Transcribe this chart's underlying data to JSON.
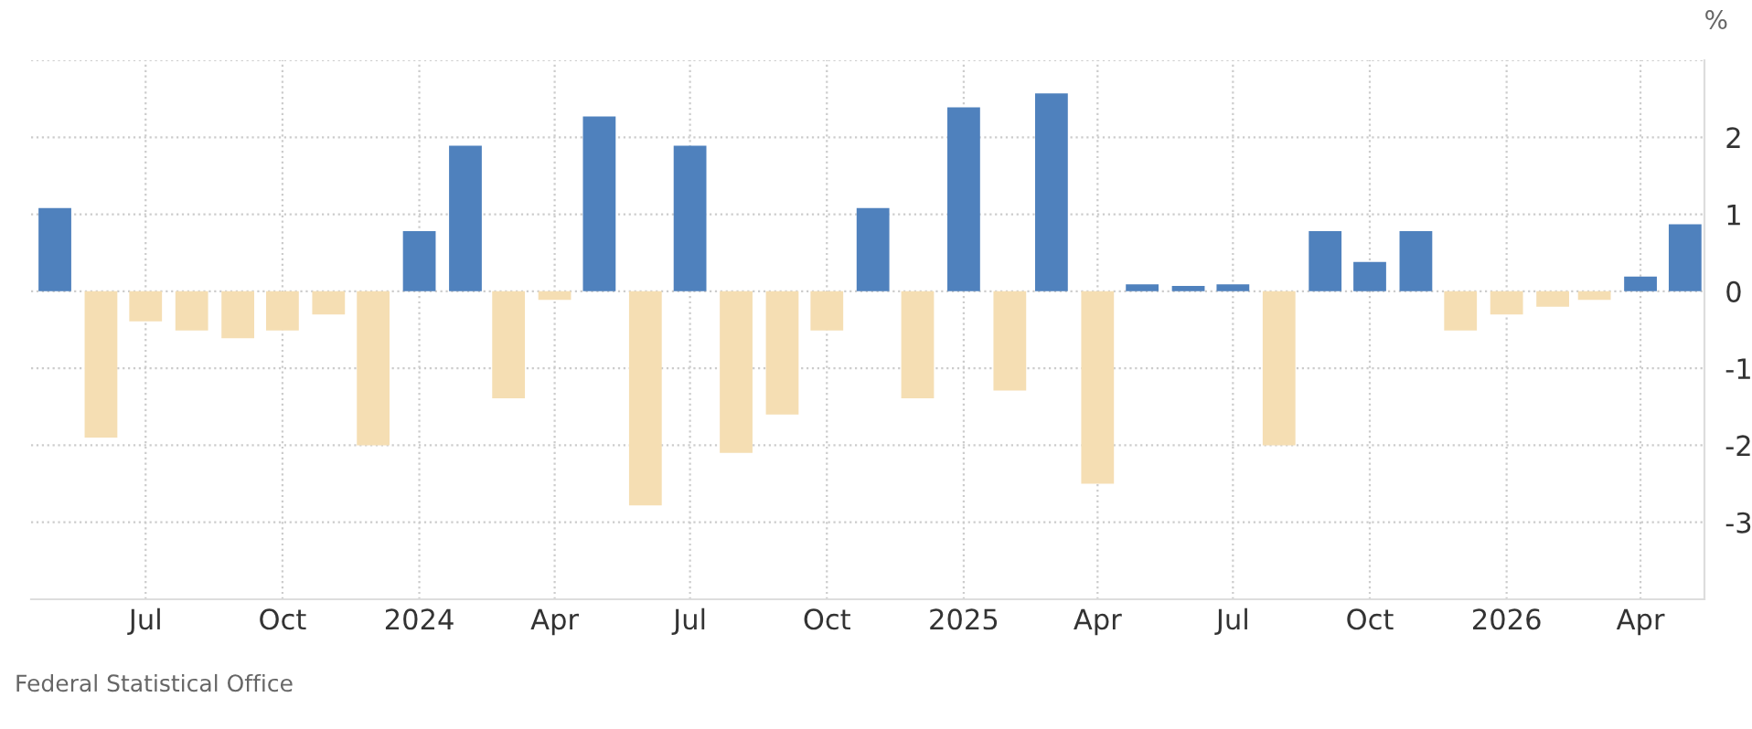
{
  "chart_data": {
    "type": "bar",
    "ylabel": "%",
    "x": [
      "2023-05-01",
      "2023-06-01",
      "2023-07-01",
      "2023-08-01",
      "2023-09-01",
      "2023-10-01",
      "2023-11-01",
      "2023-12-01",
      "2024-01-01",
      "2024-02-01",
      "2024-03-01",
      "2024-04-01",
      "2024-05-01",
      "2024-06-01",
      "2024-07-01",
      "2024-08-01",
      "2024-09-01",
      "2024-10-01",
      "2024-11-01",
      "2024-12-01",
      "2025-01-01",
      "2025-02-01",
      "2025-03-01",
      "2025-04-01",
      "2025-05-01",
      "2025-06-01",
      "2025-07-01",
      "2025-08-01",
      "2025-09-01",
      "2025-10-01",
      "2025-11-01",
      "2025-12-01",
      "2026-01-01",
      "2026-02-01",
      "2026-03-01",
      "2026-04-01",
      "2026-05-01"
    ],
    "values": [
      1.08,
      -1.9,
      -0.39,
      -0.51,
      -0.61,
      -0.51,
      -0.3,
      -2.0,
      0.78,
      1.89,
      -1.39,
      -0.11,
      2.27,
      -2.78,
      1.89,
      -2.1,
      -1.6,
      -0.51,
      1.08,
      -1.39,
      2.39,
      -1.29,
      2.57,
      -2.5,
      0.09,
      0.07,
      0.09,
      -2.0,
      0.78,
      0.38,
      0.78,
      -0.51,
      -0.3,
      -0.2,
      -0.11,
      0.19,
      0.87
    ],
    "colors": [
      "#4f81bd",
      "#f5deb3",
      "#f5deb3",
      "#f5deb3",
      "#f5deb3",
      "#f5deb3",
      "#f5deb3",
      "#f5deb3",
      "#4f81bd",
      "#4f81bd",
      "#f5deb3",
      "#f5deb3",
      "#4f81bd",
      "#f5deb3",
      "#4f81bd",
      "#f5deb3",
      "#f5deb3",
      "#f5deb3",
      "#4f81bd",
      "#f5deb3",
      "#4f81bd",
      "#f5deb3",
      "#4f81bd",
      "#f5deb3",
      "#4f81bd",
      "#4f81bd",
      "#4f81bd",
      "#f5deb3",
      "#4f81bd",
      "#4f81bd",
      "#4f81bd",
      "#f5deb3",
      "#f5deb3",
      "#f5deb3",
      "#f5deb3",
      "#4f81bd",
      "#4f81bd"
    ],
    "xlim": [
      "2023-04-15",
      "2026-05-14"
    ],
    "xticks": [
      {
        "value": "2023-07-01",
        "label": "Jul"
      },
      {
        "value": "2023-10-01",
        "label": "Oct"
      },
      {
        "value": "2024-01-01",
        "label": "2024"
      },
      {
        "value": "2024-04-01",
        "label": "Apr"
      },
      {
        "value": "2024-07-01",
        "label": "Jul"
      },
      {
        "value": "2024-10-01",
        "label": "Oct"
      },
      {
        "value": "2025-01-01",
        "label": "2025"
      },
      {
        "value": "2025-04-01",
        "label": "Apr"
      },
      {
        "value": "2025-07-01",
        "label": "Jul"
      },
      {
        "value": "2025-10-01",
        "label": "Oct"
      },
      {
        "value": "2026-01-01",
        "label": "2026"
      },
      {
        "value": "2026-04-01",
        "label": "Apr"
      }
    ],
    "ylim": [
      -4,
      3
    ],
    "yticks": [
      -3,
      -2,
      -1,
      0,
      1,
      2,
      {
        "value": 3,
        "label": null
      }
    ],
    "grid": true,
    "annotations": [
      "Federal Statistical Office"
    ]
  }
}
